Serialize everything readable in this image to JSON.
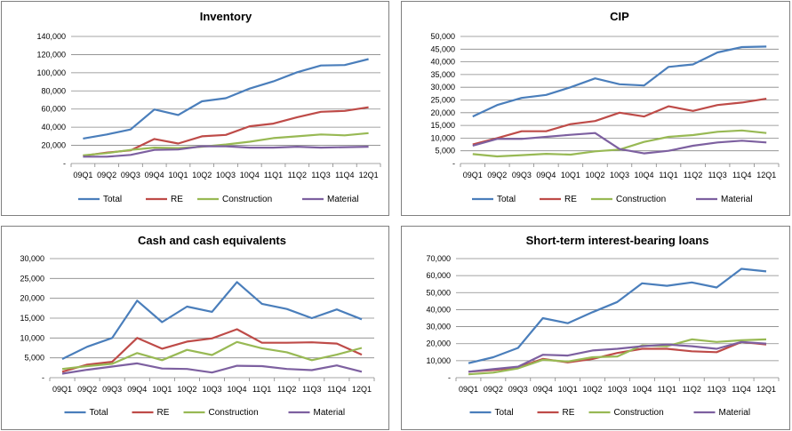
{
  "colors": {
    "Total": "#4a7ebb",
    "RE": "#be4b48",
    "Construction": "#98b954",
    "Material": "#7d60a0",
    "grid": "#868686"
  },
  "chart_data": [
    {
      "type": "line",
      "title": "Inventory",
      "categories": [
        "09Q1",
        "09Q2",
        "09Q3",
        "09Q4",
        "10Q1",
        "10Q2",
        "10Q3",
        "10Q4",
        "11Q1",
        "11Q2",
        "11Q3",
        "11Q4",
        "12Q1"
      ],
      "ylim": [
        0,
        140000
      ],
      "yticks": [
        "-",
        "20,000",
        "40,000",
        "60,000",
        "80,000",
        "100,000",
        "120,000",
        "140,000"
      ],
      "grid": true,
      "legend_position": "bottom",
      "series": [
        {
          "name": "Total",
          "values": [
            27500,
            32000,
            37500,
            59500,
            53500,
            68500,
            72000,
            82500,
            90500,
            100500,
            108000,
            108500,
            115000
          ]
        },
        {
          "name": "RE",
          "values": [
            8500,
            12000,
            14500,
            27000,
            22000,
            30000,
            31500,
            41000,
            44000,
            51000,
            57000,
            58000,
            62000
          ]
        },
        {
          "name": "Construction",
          "values": [
            9000,
            11500,
            15000,
            17500,
            17000,
            18500,
            21000,
            24000,
            28000,
            30000,
            32000,
            31000,
            33500
          ]
        },
        {
          "name": "Material",
          "values": [
            7500,
            7500,
            9500,
            15000,
            15500,
            19000,
            19000,
            17500,
            17500,
            18500,
            17500,
            18000,
            18500
          ]
        }
      ]
    },
    {
      "type": "line",
      "title": "CIP",
      "categories": [
        "09Q1",
        "09Q2",
        "09Q3",
        "09Q4",
        "10Q1",
        "10Q2",
        "10Q3",
        "10Q4",
        "11Q1",
        "11Q2",
        "11Q3",
        "11Q4",
        "12Q1"
      ],
      "ylim": [
        0,
        50000
      ],
      "yticks": [
        "-",
        "5,000",
        "10,000",
        "15,000",
        "20,000",
        "25,000",
        "30,000",
        "35,000",
        "40,000",
        "45,000",
        "50,000"
      ],
      "grid": true,
      "legend_position": "bottom",
      "series": [
        {
          "name": "Total",
          "values": [
            18500,
            23000,
            25800,
            27000,
            30000,
            33500,
            31200,
            30700,
            38000,
            39000,
            43700,
            45800,
            46000
          ]
        },
        {
          "name": "RE",
          "values": [
            7500,
            10000,
            12700,
            12700,
            15500,
            16700,
            20000,
            18500,
            22500,
            20700,
            23000,
            24000,
            25500
          ]
        },
        {
          "name": "Construction",
          "values": [
            3700,
            2800,
            3300,
            3800,
            3500,
            4800,
            5500,
            8500,
            10500,
            11200,
            12500,
            13000,
            12000
          ]
        },
        {
          "name": "Material",
          "values": [
            7000,
            9700,
            9700,
            10500,
            11300,
            12000,
            5700,
            4000,
            5000,
            7000,
            8300,
            9000,
            8300
          ]
        }
      ]
    },
    {
      "type": "line",
      "title": "Cash and cash equivalents",
      "categories": [
        "09Q1",
        "09Q2",
        "09Q3",
        "09Q4",
        "10Q1",
        "10Q2",
        "10Q3",
        "10Q4",
        "11Q1",
        "11Q2",
        "11Q3",
        "11Q4",
        "12Q1"
      ],
      "ylim": [
        0,
        30000
      ],
      "yticks": [
        "-",
        "5,000",
        "10,000",
        "15,000",
        "20,000",
        "25,000",
        "30,000"
      ],
      "grid": true,
      "legend_position": "bottom",
      "series": [
        {
          "name": "Total",
          "values": [
            4700,
            7800,
            10000,
            19400,
            14000,
            17900,
            16600,
            24100,
            18600,
            17300,
            15000,
            17200,
            14700
          ]
        },
        {
          "name": "RE",
          "values": [
            1500,
            3300,
            4000,
            10000,
            7300,
            9100,
            9900,
            12200,
            8800,
            8800,
            8900,
            8600,
            5800
          ]
        },
        {
          "name": "Construction",
          "values": [
            2200,
            2900,
            3500,
            6200,
            4400,
            7000,
            5700,
            9000,
            7400,
            6400,
            4400,
            5800,
            7500
          ]
        },
        {
          "name": "Material",
          "values": [
            1000,
            2000,
            2800,
            3600,
            2300,
            2200,
            1300,
            3000,
            2900,
            2200,
            1900,
            3100,
            1500
          ]
        }
      ]
    },
    {
      "type": "line",
      "title": "Short-term interest-bearing loans",
      "categories": [
        "09Q1",
        "09Q2",
        "09Q3",
        "09Q4",
        "10Q1",
        "10Q2",
        "10Q3",
        "10Q4",
        "11Q1",
        "11Q2",
        "11Q3",
        "11Q4",
        "12Q1"
      ],
      "ylim": [
        0,
        70000
      ],
      "yticks": [
        "-",
        "10,000",
        "20,000",
        "30,000",
        "40,000",
        "50,000",
        "60,000",
        "70,000"
      ],
      "grid": true,
      "legend_position": "bottom",
      "series": [
        {
          "name": "Total",
          "values": [
            8500,
            12000,
            17500,
            35000,
            32000,
            38500,
            44500,
            55500,
            54000,
            56000,
            53000,
            64000,
            62500
          ]
        },
        {
          "name": "RE",
          "values": [
            3500,
            4500,
            6000,
            11000,
            9000,
            11000,
            14500,
            17000,
            17000,
            15500,
            15000,
            21000,
            19500
          ]
        },
        {
          "name": "Construction",
          "values": [
            2000,
            3000,
            5500,
            10500,
            9500,
            12000,
            12500,
            19000,
            18500,
            22500,
            21000,
            22000,
            22500
          ]
        },
        {
          "name": "Material",
          "values": [
            3500,
            5000,
            6500,
            13500,
            13000,
            16000,
            17000,
            18500,
            19500,
            18500,
            17000,
            21000,
            20000
          ]
        }
      ]
    }
  ]
}
